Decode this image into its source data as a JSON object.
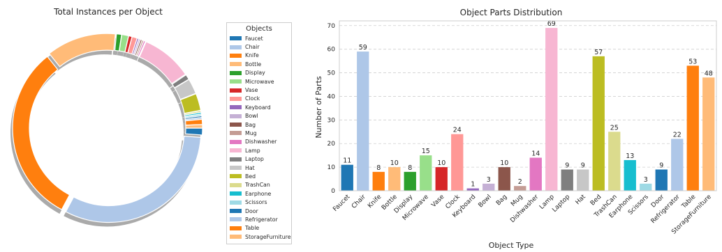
{
  "chart_data": [
    {
      "type": "pie",
      "title": "Total Instances per Object",
      "legend_title": "Objects",
      "legend_position": "right",
      "style": "donut with shadow",
      "categories": [
        "Faucet",
        "Chair",
        "Knife",
        "Bottle",
        "Display",
        "Microwave",
        "Vase",
        "Clock",
        "Keyboard",
        "Bowl",
        "Bag",
        "Mug",
        "Dishwasher",
        "Lamp",
        "Laptop",
        "Hat",
        "Bed",
        "TrashCan",
        "Earphone",
        "Scissors",
        "Door",
        "Refrigerator",
        "Table",
        "StorageFurniture"
      ],
      "values": [
        4,
        106,
        106,
        41,
        3,
        4,
        2,
        3,
        1,
        1,
        1,
        1,
        1,
        30,
        3,
        9,
        10,
        1,
        1,
        1,
        1,
        1,
        3,
        2
      ],
      "colors": [
        "#1f77b4",
        "#aec7e8",
        "#ff7f0e",
        "#ffbb78",
        "#2ca02c",
        "#98df8a",
        "#d62728",
        "#ff9896",
        "#9467bd",
        "#c5b0d5",
        "#8c564b",
        "#c49c94",
        "#e377c2",
        "#f7b6d2",
        "#7f7f7f",
        "#c7c7c7",
        "#bcbd22",
        "#dbdb8d",
        "#17becf",
        "#9edae5",
        "#1f77b4",
        "#aec7e8",
        "#ff7f0e",
        "#ffbb78"
      ]
    },
    {
      "type": "bar",
      "title": "Object Parts Distribution",
      "xlabel": "Object Type",
      "ylabel": "Number of Parts",
      "ylim": [
        0,
        72
      ],
      "yticks": [
        0,
        10,
        20,
        30,
        40,
        50,
        60,
        70
      ],
      "grid": "horizontal dashed",
      "categories": [
        "Faucet",
        "Chair",
        "Knife",
        "Bottle",
        "Display",
        "Microwave",
        "Vase",
        "Clock",
        "Keyboard",
        "Bowl",
        "Bag",
        "Mug",
        "Dishwasher",
        "Lamp",
        "Laptop",
        "Hat",
        "Bed",
        "TrashCan",
        "Earphone",
        "Scissors",
        "Door",
        "Refrigerator",
        "Table",
        "StorageFurniture"
      ],
      "values": [
        11,
        59,
        8,
        10,
        8,
        15,
        10,
        24,
        1,
        3,
        10,
        2,
        14,
        69,
        9,
        9,
        57,
        25,
        13,
        3,
        9,
        22,
        53,
        48
      ],
      "colors": [
        "#1f77b4",
        "#aec7e8",
        "#ff7f0e",
        "#ffbb78",
        "#2ca02c",
        "#98df8a",
        "#d62728",
        "#ff9896",
        "#9467bd",
        "#c5b0d5",
        "#8c564b",
        "#c49c94",
        "#e377c2",
        "#f7b6d2",
        "#7f7f7f",
        "#c7c7c7",
        "#bcbd22",
        "#dbdb8d",
        "#17becf",
        "#9edae5",
        "#1f77b4",
        "#aec7e8",
        "#ff7f0e",
        "#ffbb78"
      ]
    }
  ]
}
